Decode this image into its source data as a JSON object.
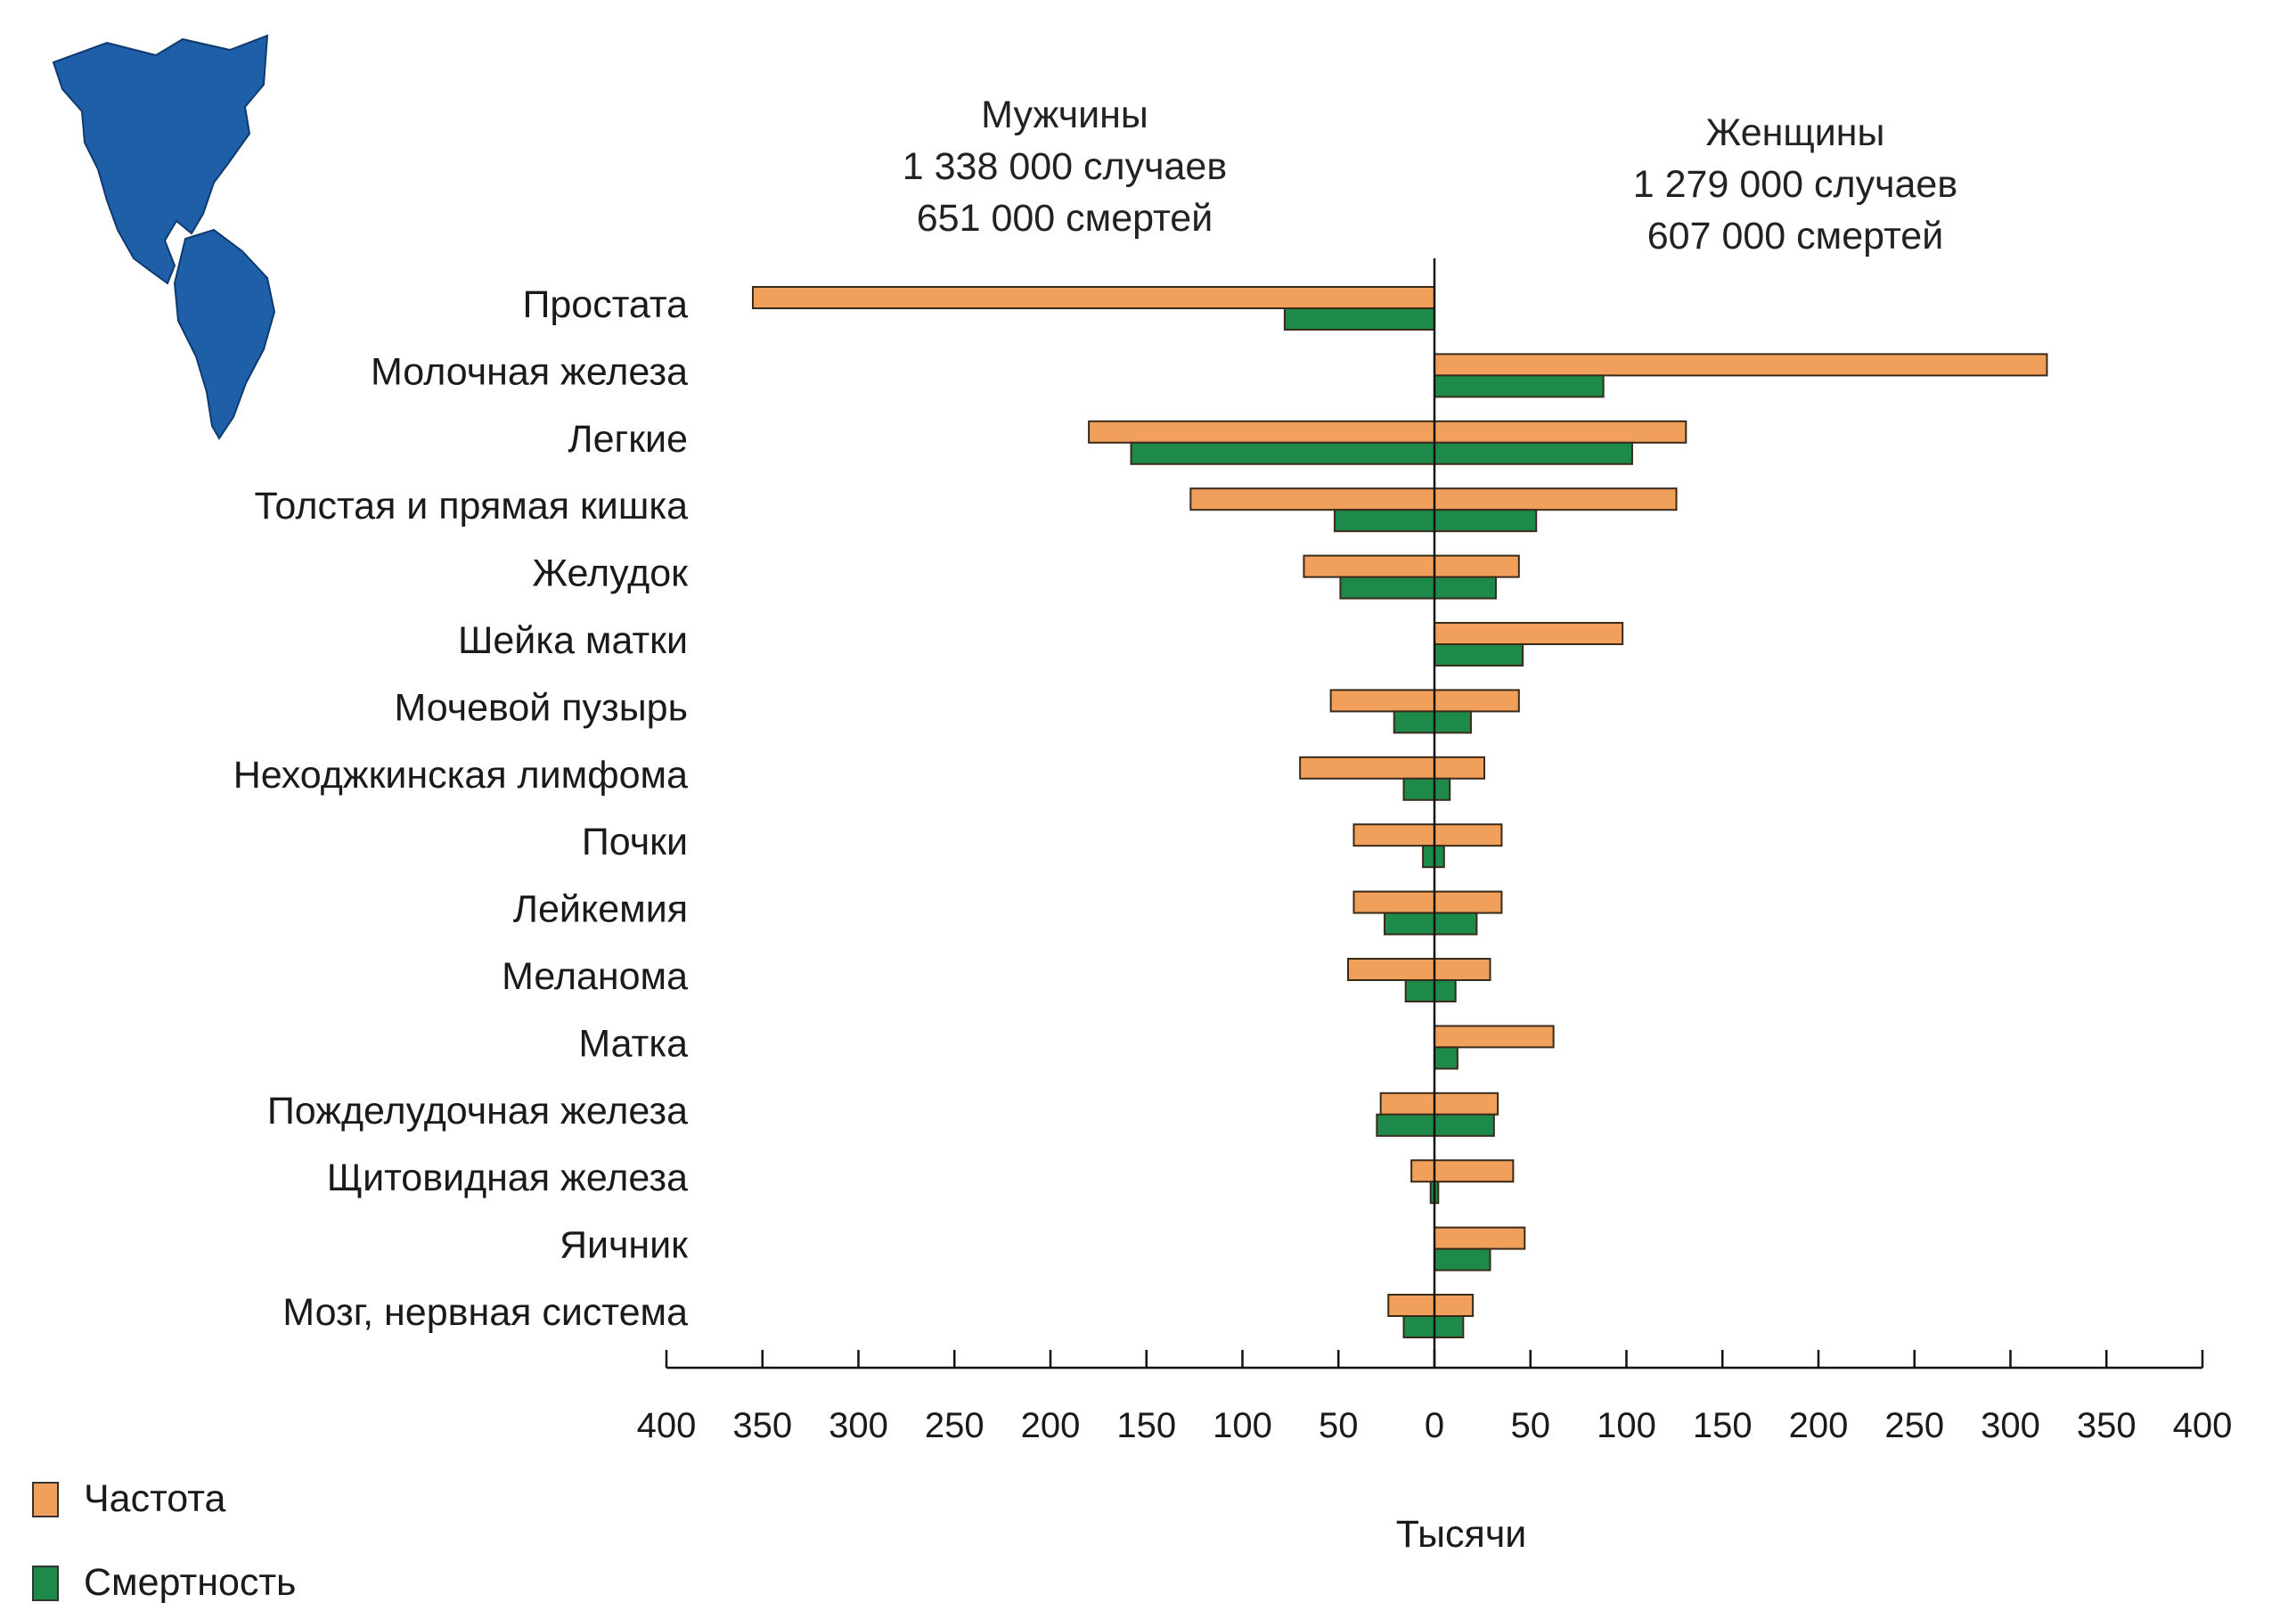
{
  "headers": {
    "men": {
      "title": "Мужчины",
      "cases": "1 338 000 случаев",
      "deaths": "651 000 смертей"
    },
    "women": {
      "title": "Женщины",
      "cases": "1 279 000 случаев",
      "deaths": "607 000 смертей"
    }
  },
  "legend": {
    "incidence": "Частота",
    "mortality": "Смертность"
  },
  "colors": {
    "incidence": "#f0a05a",
    "mortality": "#1e8a4a",
    "map": "#1f5fa8",
    "axis": "#111111"
  },
  "map_icon": "americas-map-icon",
  "chart_data": {
    "type": "bar",
    "orientation": "horizontal-butterfly",
    "categories": [
      "Простата",
      "Молочная железа",
      "Легкие",
      "Толстая и прямая кишка",
      "Желудок",
      "Шейка матки",
      "Мочевой пузырь",
      "Неходжкинская лимфома",
      "Почки",
      "Лейкемия",
      "Меланома",
      "Матка",
      "Пожделудочная железа",
      "Щитовидная железа",
      "Яичник",
      "Мозг, нервная система"
    ],
    "series": [
      {
        "name": "Частота",
        "group": "Мужчины",
        "values": [
          355,
          0,
          180,
          127,
          68,
          0,
          54,
          70,
          42,
          42,
          45,
          0,
          28,
          12,
          0,
          24
        ]
      },
      {
        "name": "Смертность",
        "group": "Мужчины",
        "values": [
          78,
          0,
          158,
          52,
          49,
          0,
          21,
          16,
          6,
          26,
          15,
          0,
          30,
          2,
          0,
          16
        ]
      },
      {
        "name": "Частота",
        "group": "Женщины",
        "values": [
          0,
          319,
          131,
          126,
          44,
          98,
          44,
          26,
          35,
          35,
          29,
          62,
          33,
          41,
          47,
          20
        ]
      },
      {
        "name": "Смертность",
        "group": "Женщины",
        "values": [
          0,
          88,
          103,
          53,
          32,
          46,
          19,
          8,
          5,
          22,
          11,
          12,
          31,
          2,
          29,
          15
        ]
      }
    ],
    "x_ticks": [
      400,
      350,
      300,
      250,
      200,
      150,
      100,
      50,
      0,
      50,
      100,
      150,
      200,
      250,
      300,
      350,
      400
    ],
    "xlabel": "Тысячи",
    "xlim": [
      -400,
      400
    ],
    "legend_position": "bottom-left",
    "grid": false
  }
}
